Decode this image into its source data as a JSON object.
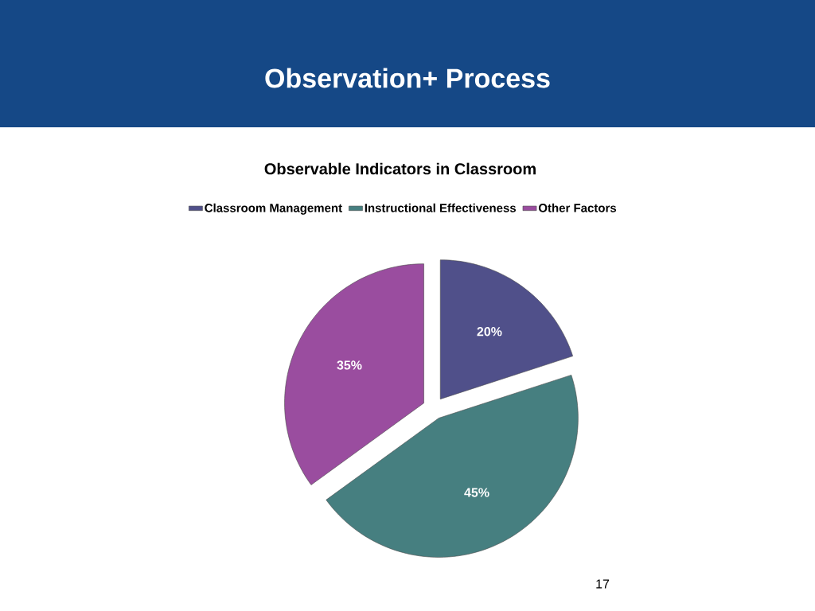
{
  "chart_data": {
    "type": "pie",
    "title": "Observation+ Process",
    "subtitle": "Observable Indicators in Classroom",
    "categories": [
      "Classroom Management",
      "Instructional Effectiveness",
      "Other Factors"
    ],
    "values": [
      20,
      45,
      35
    ],
    "colors": [
      "#50508a",
      "#467f80",
      "#9a4d9f"
    ],
    "value_labels": [
      "20%",
      "45%",
      "35%"
    ],
    "legend": "top",
    "annotations": [
      "17"
    ]
  }
}
